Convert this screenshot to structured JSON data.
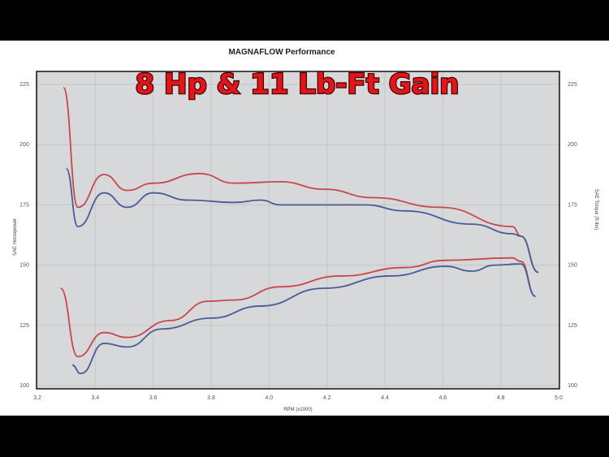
{
  "chart_data": {
    "type": "line",
    "title": "MAGNAFLOW Performance",
    "annotation": "8 Hp & 11 Lb-Ft Gain",
    "xlabel": "RPM (x1000)",
    "ylabel": "SAE Horsepower",
    "y2label": "SAE Torque (ft-lbs)",
    "xlim": [
      3.2,
      5.0
    ],
    "ylim": [
      100,
      225
    ],
    "xticks": [
      "3.2",
      "3.4",
      "3.6",
      "3.8",
      "4.0",
      "4.2",
      "4.4",
      "4.6",
      "4.8",
      "5.0"
    ],
    "yticks": [
      "100",
      "125",
      "150",
      "175",
      "200",
      "225"
    ],
    "grid": true,
    "colors": {
      "modified": "#c8464e",
      "stock": "#4a5a9a",
      "plot_bg": "#d6d8d9",
      "annotation": "#e0161b"
    },
    "series": [
      {
        "group": "torque",
        "variant": "modified",
        "x": [
          3.29,
          3.34,
          3.43,
          3.51,
          3.6,
          3.76,
          3.88,
          4.04,
          4.19,
          4.36,
          4.59,
          4.84,
          4.87,
          4.93
        ],
        "y": [
          223.7,
          174,
          187.6,
          181,
          184,
          188,
          184,
          184.6,
          181.5,
          178,
          174,
          166,
          162,
          147
        ]
      },
      {
        "group": "torque",
        "variant": "stock",
        "x": [
          3.3,
          3.34,
          3.43,
          3.51,
          3.6,
          3.72,
          3.88,
          3.97,
          4.04,
          4.33,
          4.47,
          4.7,
          4.84,
          4.87,
          4.93
        ],
        "y": [
          190,
          166,
          180,
          174,
          180,
          177,
          176,
          177,
          175,
          175,
          172.5,
          167,
          163,
          162,
          147
        ]
      },
      {
        "group": "horsepower",
        "variant": "modified",
        "x": [
          3.28,
          3.34,
          3.43,
          3.51,
          3.66,
          3.79,
          3.88,
          4.04,
          4.25,
          4.47,
          4.61,
          4.84,
          4.87,
          4.92
        ],
        "y": [
          140.4,
          112,
          122,
          120,
          127,
          135,
          135.5,
          141,
          145.5,
          149,
          152,
          153,
          151.5,
          137
        ]
      },
      {
        "group": "horsepower",
        "variant": "stock",
        "x": [
          3.32,
          3.35,
          3.43,
          3.51,
          3.63,
          3.8,
          3.97,
          4.19,
          4.42,
          4.61,
          4.7,
          4.78,
          4.87,
          4.92
        ],
        "y": [
          108.5,
          105,
          117.5,
          116,
          123.5,
          128,
          133,
          140.4,
          145.5,
          149.5,
          147.5,
          150,
          150.5,
          137
        ]
      }
    ]
  }
}
